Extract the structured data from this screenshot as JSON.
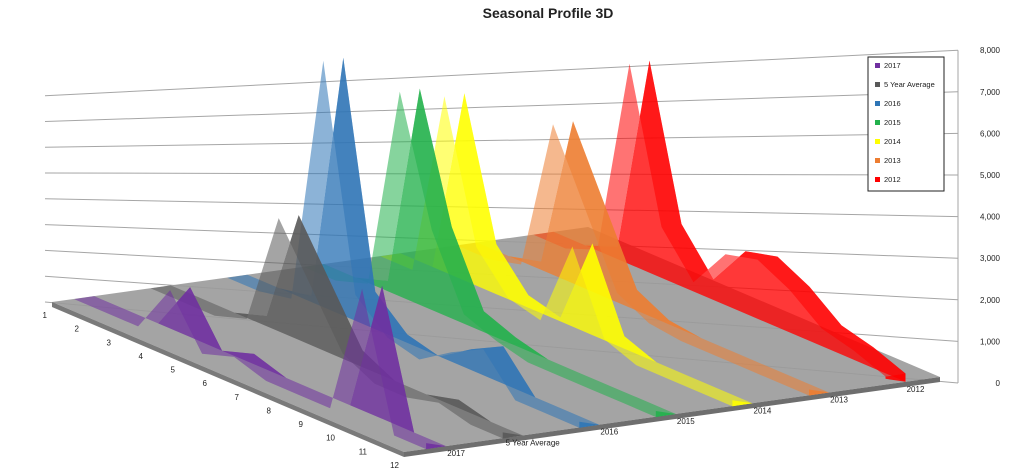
{
  "chart_data": {
    "type": "area",
    "title": "Seasonal Profile 3D",
    "x": [
      1,
      2,
      3,
      4,
      5,
      6,
      7,
      8,
      9,
      10,
      11,
      12
    ],
    "x_tick_labels": [
      "1",
      "2",
      "3",
      "4",
      "5",
      "6",
      "7",
      "8",
      "9",
      "10",
      "11",
      "12"
    ],
    "y_tick_labels": [
      "0",
      "1,000",
      "2,000",
      "3,000",
      "4,000",
      "5,000",
      "6,000",
      "7,000",
      "8,000"
    ],
    "ylim": [
      0,
      8000
    ],
    "depth_labels": [
      "2017",
      "5 Year Average",
      "2016",
      "2015",
      "2014",
      "2013",
      "2012"
    ],
    "grid": true,
    "legend_position": "top-right",
    "series": [
      {
        "name": "2017",
        "color": "#7030A0",
        "values": [
          0,
          0,
          0,
          1200,
          0,
          250,
          0,
          0,
          0,
          3200,
          0,
          0
        ]
      },
      {
        "name": "5 Year Average",
        "color": "#595959",
        "values": [
          0,
          0,
          0,
          250,
          3000,
          1700,
          400,
          0,
          0,
          200,
          0,
          0
        ]
      },
      {
        "name": "2016",
        "color": "#2E75B6",
        "values": [
          0,
          0,
          150,
          6200,
          900,
          200,
          0,
          500,
          900,
          0,
          0,
          0
        ]
      },
      {
        "name": "2015",
        "color": "#22B14C",
        "values": [
          0,
          0,
          250,
          5200,
          2200,
          500,
          200,
          0,
          0,
          0,
          0,
          0
        ]
      },
      {
        "name": "2014",
        "color": "#FFFF00",
        "values": [
          0,
          0,
          4500,
          1200,
          300,
          100,
          2200,
          300,
          0,
          0,
          0,
          0
        ]
      },
      {
        "name": "2013",
        "color": "#ED7D31",
        "values": [
          0,
          0,
          200,
          3900,
          2200,
          500,
          100,
          0,
          0,
          0,
          0,
          0
        ]
      },
      {
        "name": "2012",
        "color": "#FF0000",
        "values": [
          0,
          0,
          300,
          5100,
          1500,
          500,
          1500,
          1700,
          1300,
          700,
          500,
          200
        ]
      }
    ]
  }
}
